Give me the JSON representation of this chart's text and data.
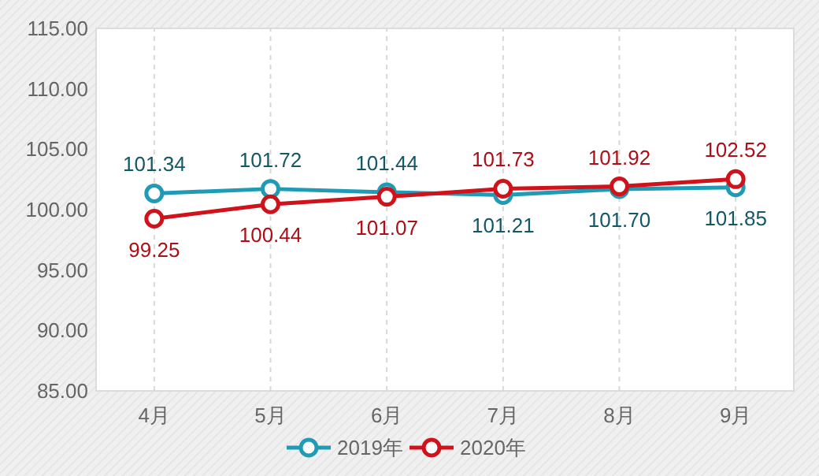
{
  "chart_data": {
    "type": "line",
    "categories": [
      "4月",
      "5月",
      "6月",
      "7月",
      "8月",
      "9月"
    ],
    "series": [
      {
        "name": "2019年",
        "color": "#1f9bb5",
        "values": [
          101.34,
          101.72,
          101.44,
          101.21,
          101.7,
          101.85
        ],
        "value_labels": [
          "101.34",
          "101.72",
          "101.44",
          "101.21",
          "101.70",
          "101.85"
        ]
      },
      {
        "name": "2020年",
        "color": "#d0121b",
        "values": [
          99.25,
          100.44,
          101.07,
          101.73,
          101.92,
          102.52
        ],
        "value_labels": [
          "99.25",
          "100.44",
          "101.07",
          "101.73",
          "101.92",
          "102.52"
        ]
      }
    ],
    "ylim": [
      85,
      115
    ],
    "yticks": [
      {
        "value": 85,
        "label": "85.00"
      },
      {
        "value": 90,
        "label": "90.00"
      },
      {
        "value": 95,
        "label": "95.00"
      },
      {
        "value": 100,
        "label": "100.00"
      },
      {
        "value": 105,
        "label": "105.00"
      },
      {
        "value": 110,
        "label": "110.00"
      },
      {
        "value": 115,
        "label": "115.00"
      }
    ],
    "grid": "x",
    "legend": "bottom",
    "marker": "circle",
    "line_style": "solid"
  }
}
